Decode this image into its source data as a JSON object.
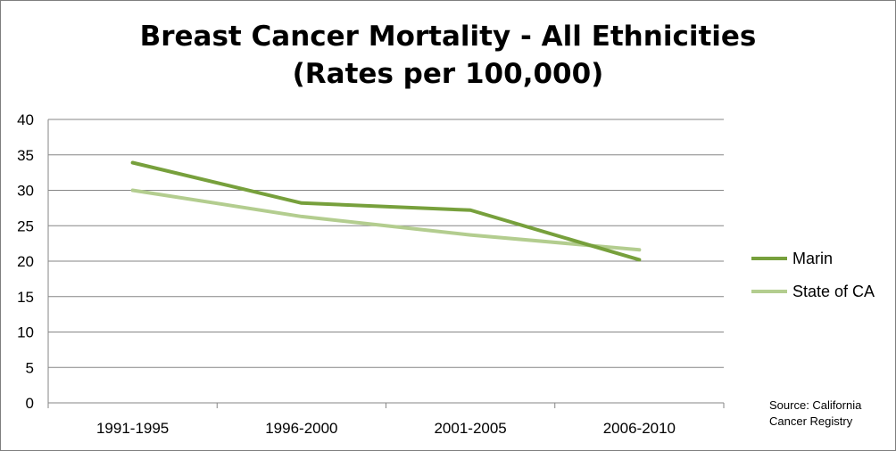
{
  "chart_data": {
    "type": "line",
    "title": [
      "Breast Cancer Mortality - All Ethnicities",
      "(Rates per 100,000)"
    ],
    "categories": [
      "1991-1995",
      "1996-2000",
      "2001-2005",
      "2006-2010"
    ],
    "ylim": [
      0,
      40
    ],
    "yticks": [
      0,
      5,
      10,
      15,
      20,
      25,
      30,
      35,
      40
    ],
    "grid": true,
    "legend_position": "right",
    "series": [
      {
        "name": "Marin",
        "values": [
          33.9,
          28.2,
          27.2,
          20.2
        ],
        "color": "#77a03c"
      },
      {
        "name": "State of CA",
        "values": [
          30.0,
          26.3,
          23.7,
          21.6
        ],
        "color": "#b3cd8f"
      }
    ]
  },
  "source_note": [
    "Source: California",
    "Cancer Registry"
  ]
}
